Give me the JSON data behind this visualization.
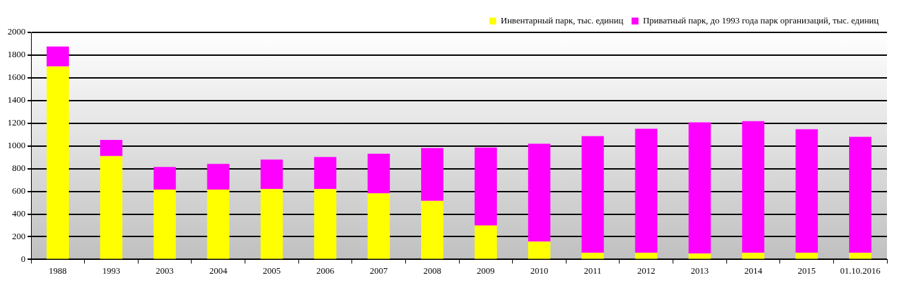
{
  "chart_data": {
    "type": "bar",
    "stacked": true,
    "categories": [
      "1988",
      "1993",
      "2003",
      "2004",
      "2005",
      "2006",
      "2007",
      "2008",
      "2009",
      "2010",
      "2011",
      "2012",
      "2013",
      "2014",
      "2015",
      "01.10.2016"
    ],
    "series": [
      {
        "name": "Инвентарный парк, тыс. единиц",
        "color": "#ffff00",
        "values": [
          1700,
          910,
          615,
          615,
          620,
          620,
          582,
          516,
          300,
          157,
          59,
          59,
          52,
          59,
          59,
          59
        ]
      },
      {
        "name": "Приватный парк, до 1993 года парк организаций, тыс. единиц",
        "color": "#ff00ff",
        "values": [
          176,
          143,
          200,
          227,
          260,
          283,
          349,
          465,
          686,
          862,
          1027,
          1093,
          1155,
          1159,
          1088,
          1021
        ]
      }
    ],
    "ylim": [
      0,
      2000
    ],
    "yticks": [
      0,
      200,
      400,
      600,
      800,
      1000,
      1200,
      1400,
      1600,
      1800,
      2000
    ],
    "grid": "y",
    "legend": "top right"
  }
}
